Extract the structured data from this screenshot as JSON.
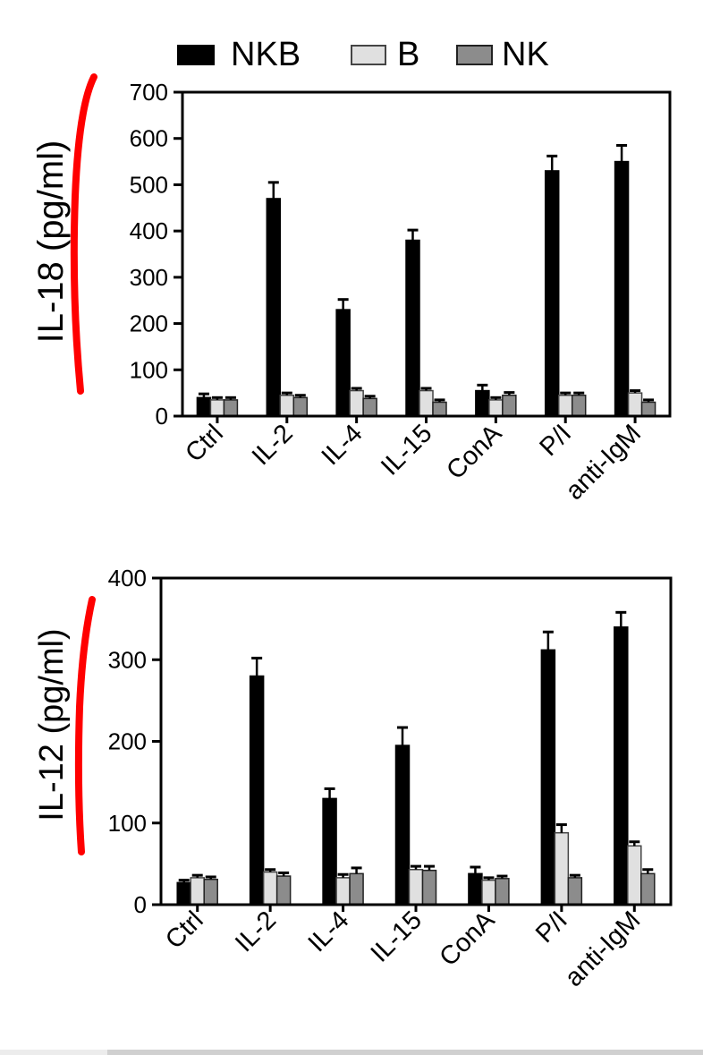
{
  "legend": {
    "items": [
      {
        "label": "NKB",
        "color": "#000000",
        "border": "#000000"
      },
      {
        "label": "B",
        "color": "#e0e0e0",
        "border": "#444444"
      },
      {
        "label": "NK",
        "color": "#8c8c8c",
        "border": "#222222"
      }
    ]
  },
  "annotation": {
    "color": "#ff0000",
    "type": "red-bracket-marks"
  },
  "chart_data": [
    {
      "type": "bar",
      "title": "",
      "xlabel": "",
      "ylabel": "IL-18 (pg/ml)",
      "ylim": [
        0,
        700
      ],
      "yticks": [
        0,
        100,
        200,
        300,
        400,
        500,
        600,
        700
      ],
      "categories": [
        "Ctrl",
        "IL-2",
        "IL-4",
        "IL-15",
        "ConA",
        "P/I",
        "anti-IgM"
      ],
      "series": [
        {
          "name": "NKB",
          "values": [
            40,
            470,
            230,
            380,
            55,
            530,
            550
          ],
          "errors": [
            8,
            35,
            22,
            22,
            12,
            32,
            35
          ]
        },
        {
          "name": "B",
          "values": [
            35,
            45,
            55,
            55,
            35,
            45,
            50
          ],
          "errors": [
            5,
            5,
            5,
            5,
            5,
            5,
            5
          ]
        },
        {
          "name": "NK",
          "values": [
            35,
            40,
            38,
            30,
            45,
            45,
            30
          ],
          "errors": [
            5,
            5,
            5,
            5,
            6,
            5,
            5
          ]
        }
      ],
      "legend_position": "top",
      "grid": false
    },
    {
      "type": "bar",
      "title": "",
      "xlabel": "",
      "ylabel": "IL-12 (pg/ml)",
      "ylim": [
        0,
        400
      ],
      "yticks": [
        0,
        100,
        200,
        300,
        400
      ],
      "categories": [
        "Ctrl",
        "IL-2",
        "IL-4",
        "IL-15",
        "ConA",
        "P/I",
        "anti-IgM"
      ],
      "series": [
        {
          "name": "NKB",
          "values": [
            27,
            280,
            130,
            195,
            38,
            312,
            340
          ],
          "errors": [
            3,
            22,
            12,
            22,
            8,
            22,
            18
          ]
        },
        {
          "name": "B",
          "values": [
            33,
            40,
            33,
            43,
            30,
            88,
            72
          ],
          "errors": [
            3,
            3,
            4,
            4,
            3,
            10,
            5
          ]
        },
        {
          "name": "NK",
          "values": [
            31,
            35,
            38,
            42,
            32,
            33,
            38
          ],
          "errors": [
            3,
            4,
            7,
            5,
            3,
            3,
            5
          ]
        }
      ],
      "legend_position": "top",
      "grid": false
    }
  ]
}
